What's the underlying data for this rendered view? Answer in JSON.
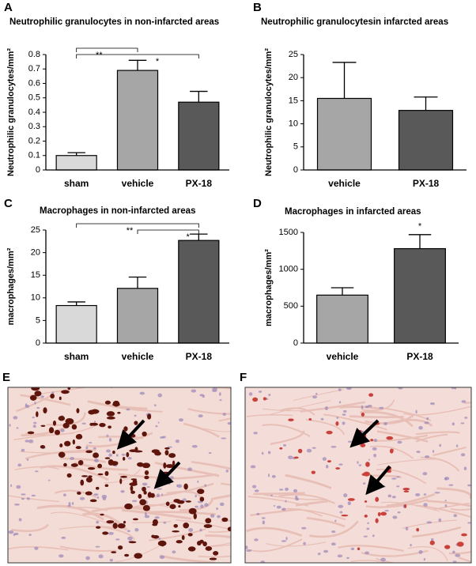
{
  "chart_data": [
    {
      "type": "bar",
      "label": "A",
      "title": "Neutrophilic granulocytes in non-infarcted areas",
      "ylabel": "Neutrophilic granulocytes/mm²",
      "categories": [
        "sham",
        "vehicle",
        "PX-18"
      ],
      "values": [
        0.1,
        0.69,
        0.47
      ],
      "errors": [
        0.02,
        0.07,
        0.075
      ],
      "colors": [
        "#d9d9d9",
        "#a6a6a6",
        "#595959"
      ],
      "ylim": [
        0,
        0.8
      ],
      "yticks": [
        0,
        0.1,
        0.2,
        0.3,
        0.4,
        0.5,
        0.6,
        0.7,
        0.8
      ],
      "grid": false,
      "annotations": [
        "**",
        "*"
      ]
    },
    {
      "type": "bar",
      "label": "B",
      "title": "Neutrophilic granulocytesin infarcted areas",
      "ylabel": "Neutrophilic granulocytes/mm²",
      "categories": [
        "vehicle",
        "PX-18"
      ],
      "values": [
        15.5,
        12.9
      ],
      "errors": [
        7.8,
        2.9
      ],
      "colors": [
        "#a6a6a6",
        "#595959"
      ],
      "ylim": [
        0,
        25
      ],
      "yticks": [
        0,
        5,
        10,
        15,
        20,
        25
      ],
      "grid": false
    },
    {
      "type": "bar",
      "label": "C",
      "title": "Macrophages in non-infarcted areas",
      "ylabel": "macrophages/mm²",
      "categories": [
        "sham",
        "vehicle",
        "PX-18"
      ],
      "values": [
        8.3,
        12.1,
        22.7
      ],
      "errors": [
        0.8,
        2.5,
        1.4
      ],
      "colors": [
        "#d9d9d9",
        "#a6a6a6",
        "#595959"
      ],
      "ylim": [
        0,
        25
      ],
      "yticks": [
        0,
        5,
        10,
        15,
        20,
        25
      ],
      "grid": false,
      "annotations": [
        "**",
        "*"
      ]
    },
    {
      "type": "bar",
      "label": "D",
      "title": "Macrophages in infarcted areas",
      "ylabel": "macrophages/mm²",
      "categories": [
        "vehicle",
        "PX-18"
      ],
      "values": [
        650,
        1280
      ],
      "errors": [
        100,
        190
      ],
      "colors": [
        "#a6a6a6",
        "#595959"
      ],
      "ylim": [
        0,
        1500
      ],
      "yticks": [
        0,
        500,
        1000,
        1500
      ],
      "grid": false,
      "annotations": [
        "*"
      ]
    }
  ],
  "images": [
    {
      "label": "E"
    },
    {
      "label": "F"
    }
  ]
}
